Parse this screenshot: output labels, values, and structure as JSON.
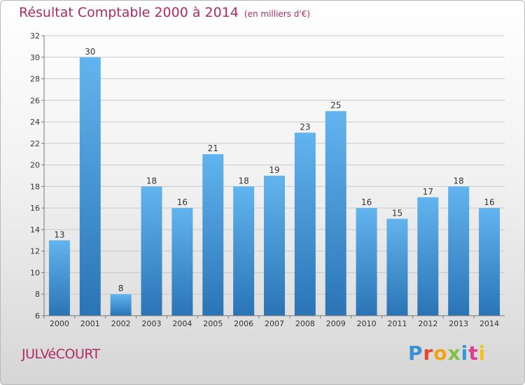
{
  "header": {
    "title": "Résultat Comptable 2000 à 2014",
    "unit": "(en milliers d'€)"
  },
  "footer": {
    "town": "JULVéCOURT",
    "brand": "Proxiti"
  },
  "colors": {
    "title": "#b02a63",
    "bar_light": "#5eb0ec",
    "bar_dark": "#2d78b9",
    "grid": "#c9c9c9",
    "axis_text": "#333333"
  },
  "chart_data": {
    "type": "bar",
    "title": "Résultat Comptable 2000 à 2014",
    "subtitle": "(en milliers d'€)",
    "xlabel": "",
    "ylabel": "",
    "categories": [
      "2000",
      "2001",
      "2002",
      "2003",
      "2004",
      "2005",
      "2006",
      "2007",
      "2008",
      "2009",
      "2010",
      "2011",
      "2012",
      "2013",
      "2014"
    ],
    "values": [
      13,
      30,
      8,
      18,
      16,
      21,
      18,
      19,
      23,
      25,
      16,
      15,
      17,
      18,
      16
    ],
    "ylim": [
      6,
      32
    ],
    "yticks": [
      6,
      8,
      10,
      12,
      14,
      16,
      18,
      20,
      22,
      24,
      26,
      28,
      30,
      32
    ],
    "grid": true
  }
}
